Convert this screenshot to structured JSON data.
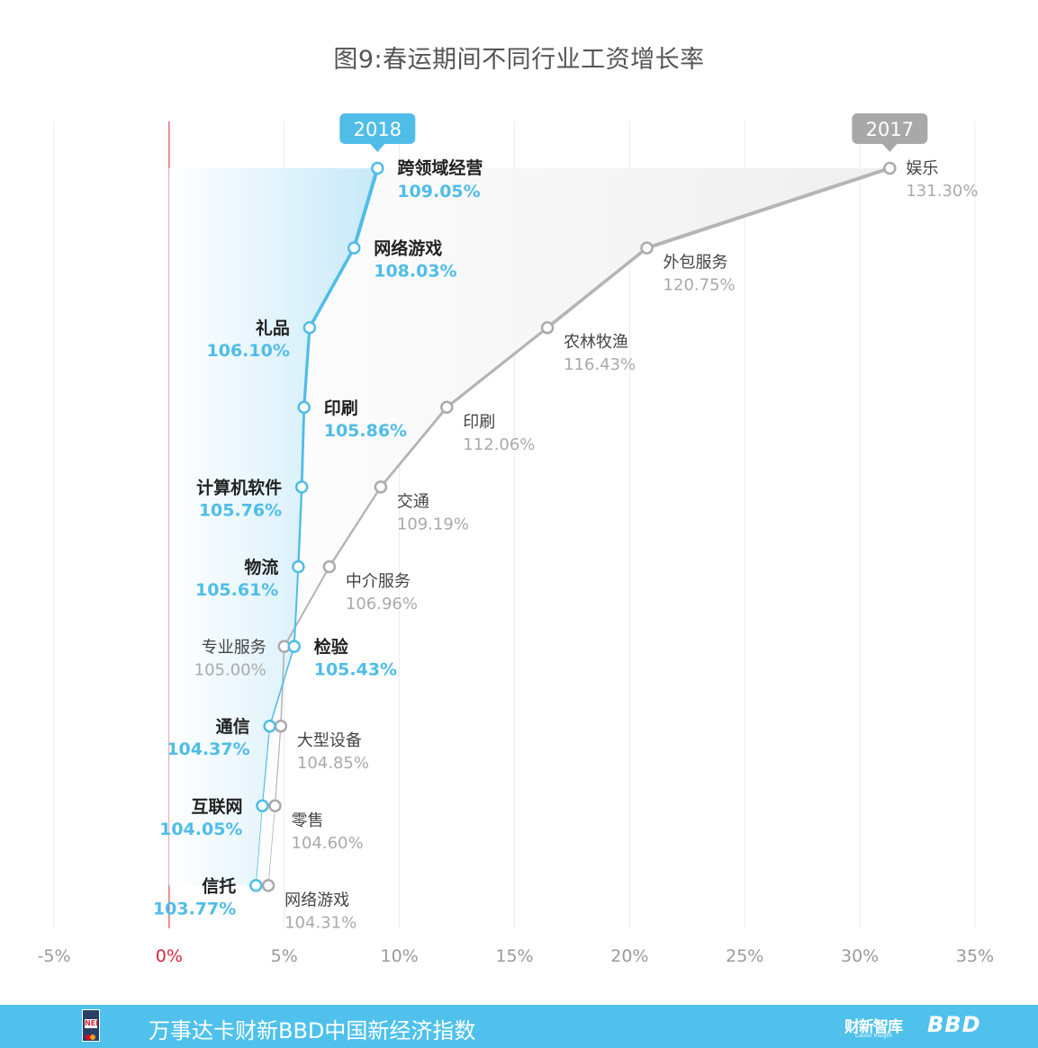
{
  "title": "图9:春运期间不同行业工资增长率",
  "chart_data": {
    "type": "line",
    "xlim": [
      -5,
      35
    ],
    "x_ticks": [
      "-5%",
      "0%",
      "5%",
      "10%",
      "15%",
      "20%",
      "25%",
      "30%",
      "35%"
    ],
    "rank_count": 10,
    "series": [
      {
        "name": "2018",
        "color": "#4fbde8",
        "points": [
          {
            "label": "跨领域经营",
            "value": "109.05%",
            "x": 109.05
          },
          {
            "label": "网络游戏",
            "value": "108.03%",
            "x": 108.03
          },
          {
            "label": "礼品",
            "value": "106.10%",
            "x": 106.1
          },
          {
            "label": "印刷",
            "value": "105.86%",
            "x": 105.86
          },
          {
            "label": "计算机软件",
            "value": "105.76%",
            "x": 105.76
          },
          {
            "label": "物流",
            "value": "105.61%",
            "x": 105.61
          },
          {
            "label": "检验",
            "value": "105.43%",
            "x": 105.43
          },
          {
            "label": "通信",
            "value": "104.37%",
            "x": 104.37
          },
          {
            "label": "互联网",
            "value": "104.05%",
            "x": 104.05
          },
          {
            "label": "信托",
            "value": "103.77%",
            "x": 103.77
          }
        ]
      },
      {
        "name": "2017",
        "color": "#b4b4b4",
        "points": [
          {
            "label": "娱乐",
            "value": "131.30%",
            "x": 131.3
          },
          {
            "label": "外包服务",
            "value": "120.75%",
            "x": 120.75
          },
          {
            "label": "农林牧渔",
            "value": "116.43%",
            "x": 116.43
          },
          {
            "label": "印刷",
            "value": "112.06%",
            "x": 112.06
          },
          {
            "label": "交通",
            "value": "109.19%",
            "x": 109.19
          },
          {
            "label": "中介服务",
            "value": "106.96%",
            "x": 106.96
          },
          {
            "label": "专业服务",
            "value": "105.00%",
            "x": 105.0
          },
          {
            "label": "大型设备",
            "value": "104.85%",
            "x": 104.85
          },
          {
            "label": "零售",
            "value": "104.60%",
            "x": 104.6
          },
          {
            "label": "网络游戏",
            "value": "104.31%",
            "x": 104.31
          }
        ]
      }
    ]
  },
  "footer": {
    "text": "万事达卡财新BBD中国新经济指数",
    "logo_left_text": "NEI",
    "logo_caixin": "财新智库",
    "logo_caixin_sub": "Caixin Insight",
    "logo_bbd": "BBD"
  }
}
